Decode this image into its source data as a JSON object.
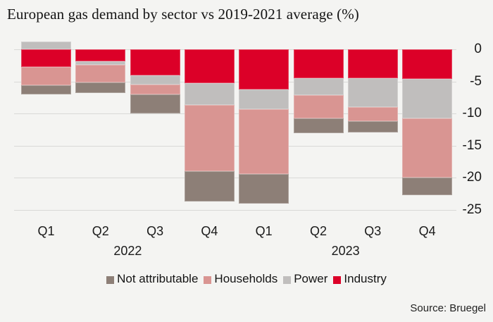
{
  "colors": {
    "background": "#f4f4f2",
    "gridline": "#d9d9d7",
    "text": "#1a1a1a"
  },
  "chart_data": {
    "type": "bar",
    "stacked": true,
    "title": "European gas demand by sector vs 2019-2021 average (%)",
    "source": "Source: Bruegel",
    "categories": [
      "Q1",
      "Q2",
      "Q3",
      "Q4",
      "Q1",
      "Q2",
      "Q3",
      "Q4"
    ],
    "year_groups": [
      {
        "label": "2022",
        "span": [
          0,
          3
        ]
      },
      {
        "label": "2023",
        "span": [
          4,
          7
        ]
      }
    ],
    "y_ticks": [
      0,
      -5,
      -10,
      -15,
      -20,
      -25
    ],
    "ylim": [
      -25,
      1.5
    ],
    "grid": true,
    "legend_position": "bottom",
    "series": [
      {
        "name": "Not attributable",
        "color": "#8d7f77",
        "values": [
          -1.4,
          -1.6,
          -3.0,
          -4.7,
          -4.6,
          -2.3,
          -1.8,
          -2.7
        ]
      },
      {
        "name": "Households",
        "color": "#d99592",
        "values": [
          -2.9,
          -2.8,
          -1.5,
          -10.3,
          -10.1,
          -3.6,
          -2.2,
          -9.3
        ]
      },
      {
        "name": "Power",
        "color": "#c0bebd",
        "values": [
          1.2,
          -0.5,
          -1.5,
          -3.4,
          -3.1,
          -2.6,
          -4.5,
          -6.1
        ]
      },
      {
        "name": "Industry",
        "color": "#dc0028",
        "values": [
          -2.7,
          -1.9,
          -4.0,
          -5.3,
          -6.2,
          -4.5,
          -4.5,
          -4.6
        ]
      }
    ],
    "stack_order_from_zero": [
      "Industry",
      "Power",
      "Households",
      "Not attributable"
    ]
  }
}
